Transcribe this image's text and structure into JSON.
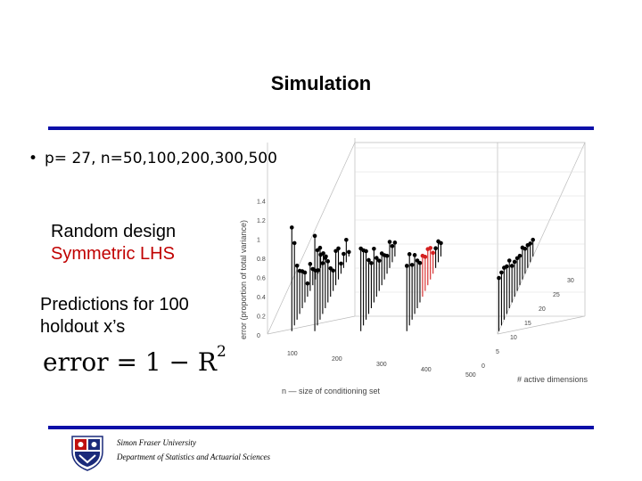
{
  "title": "Simulation",
  "bullet": {
    "marker": "•",
    "text": "p= 27, n=50,100,200,300,500"
  },
  "design": {
    "line1": "Random design",
    "line2": "Symmetric LHS"
  },
  "predictions": {
    "line1": "Predictions for 100",
    "line2": "holdout x’s"
  },
  "formula": {
    "lhs": "error = 1 − R",
    "exp": "2"
  },
  "footer": {
    "line1": "Simon Fraser University",
    "line2": "Department of Statistics and Actuarial Sciences"
  },
  "figure": {
    "z_label": "error (proportion of total variance)",
    "z_ticks": [
      "0",
      "0.2",
      "0.4",
      "0.6",
      "0.8",
      "1",
      "1.2",
      "1.4"
    ],
    "n_ticks": [
      "100",
      "200",
      "300",
      "400",
      "500"
    ],
    "n_label": "n — size of conditioning set",
    "d_ticks": [
      "0",
      "5",
      "10",
      "15",
      "20",
      "25",
      "30"
    ],
    "d_label": "# active dimensions",
    "colors": {
      "stem": "#000000",
      "highlight": "#d42020"
    }
  }
}
